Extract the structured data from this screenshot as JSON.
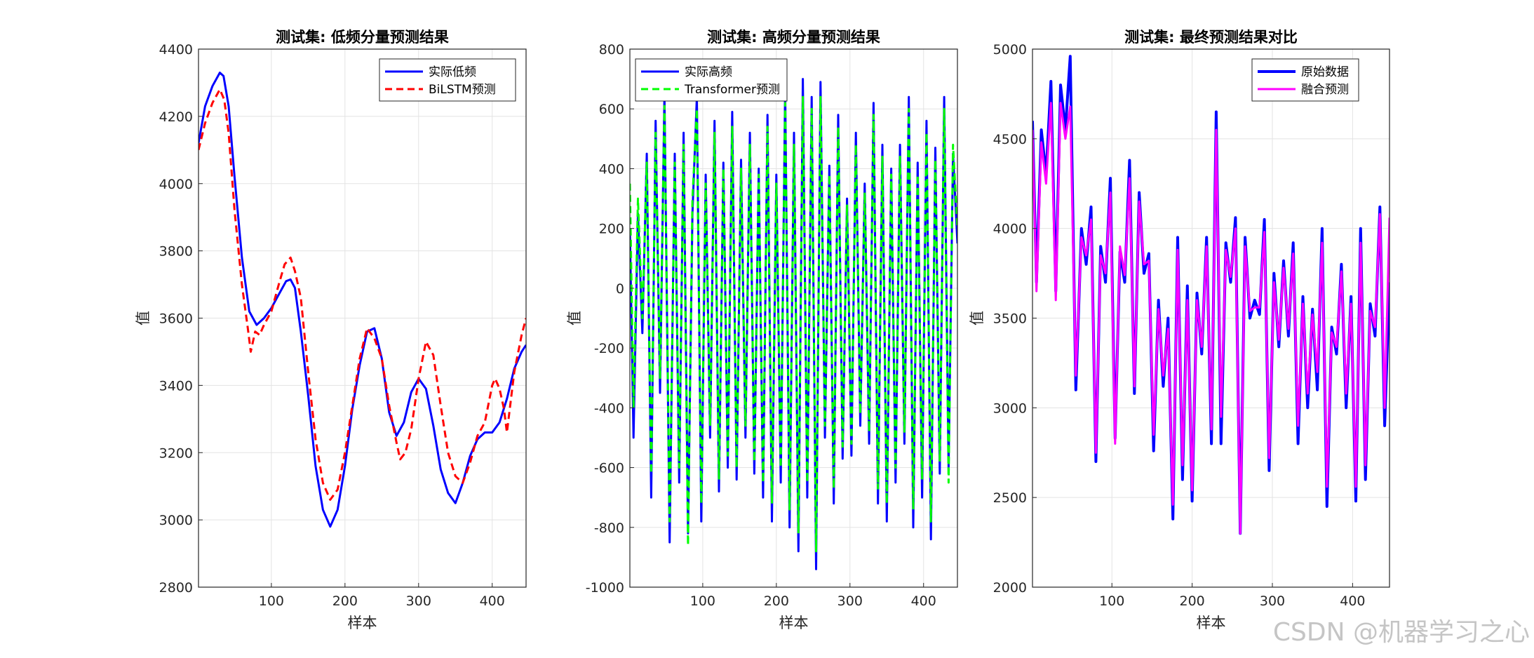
{
  "watermark": "CSDN @机器学习之心",
  "chart_data": [
    {
      "type": "line",
      "title": "测试集: 低频分量预测结果",
      "xlabel": "样本",
      "ylabel": "值",
      "xlim": [
        1,
        446
      ],
      "ylim": [
        2800,
        4400
      ],
      "xticks": [
        100,
        200,
        300,
        400
      ],
      "yticks": [
        2800,
        3000,
        3200,
        3400,
        3600,
        3800,
        4000,
        4200,
        4400
      ],
      "grid": true,
      "legend_position": "top-right",
      "series": [
        {
          "name": "实际低频",
          "color": "#0000ff",
          "dash": "solid",
          "width": 3,
          "x": [
            1,
            10,
            20,
            30,
            35,
            42,
            50,
            60,
            70,
            80,
            90,
            100,
            110,
            120,
            126,
            132,
            140,
            150,
            160,
            170,
            180,
            190,
            200,
            210,
            220,
            230,
            240,
            250,
            260,
            270,
            280,
            290,
            300,
            310,
            320,
            330,
            340,
            350,
            360,
            370,
            380,
            390,
            400,
            410,
            420,
            430,
            440,
            446
          ],
          "y": [
            4120,
            4230,
            4290,
            4330,
            4320,
            4230,
            4020,
            3780,
            3620,
            3580,
            3600,
            3630,
            3670,
            3710,
            3715,
            3690,
            3560,
            3370,
            3160,
            3030,
            2980,
            3030,
            3160,
            3330,
            3460,
            3560,
            3570,
            3480,
            3320,
            3250,
            3290,
            3380,
            3420,
            3390,
            3280,
            3150,
            3080,
            3050,
            3110,
            3190,
            3240,
            3260,
            3260,
            3290,
            3360,
            3450,
            3500,
            3520
          ]
        },
        {
          "name": "BiLSTM预测",
          "color": "#ff0000",
          "dash": "dashed",
          "width": 3,
          "x": [
            1,
            10,
            20,
            30,
            36,
            42,
            50,
            60,
            68,
            72,
            78,
            84,
            90,
            100,
            110,
            118,
            126,
            132,
            140,
            150,
            160,
            170,
            180,
            190,
            200,
            210,
            220,
            230,
            240,
            250,
            260,
            270,
            275,
            282,
            290,
            300,
            310,
            320,
            330,
            340,
            350,
            360,
            370,
            380,
            390,
            400,
            404,
            410,
            416,
            420,
            430,
            440,
            446
          ],
          "y": [
            4100,
            4180,
            4240,
            4280,
            4250,
            4150,
            3920,
            3700,
            3570,
            3500,
            3560,
            3550,
            3580,
            3620,
            3700,
            3760,
            3780,
            3740,
            3660,
            3440,
            3240,
            3110,
            3060,
            3090,
            3200,
            3340,
            3480,
            3570,
            3540,
            3480,
            3340,
            3230,
            3180,
            3200,
            3270,
            3420,
            3530,
            3490,
            3340,
            3200,
            3130,
            3110,
            3170,
            3250,
            3290,
            3400,
            3420,
            3390,
            3330,
            3260,
            3440,
            3550,
            3600
          ]
        }
      ]
    },
    {
      "type": "line",
      "title": "测试集: 高频分量预测结果",
      "xlabel": "样本",
      "ylabel": "值",
      "xlim": [
        1,
        446
      ],
      "ylim": [
        -1000,
        800
      ],
      "xticks": [
        100,
        200,
        300,
        400
      ],
      "yticks": [
        -1000,
        -800,
        -600,
        -400,
        -200,
        0,
        200,
        400,
        600,
        800
      ],
      "grid": true,
      "legend_position": "top-left",
      "series": [
        {
          "name": "实际高频",
          "color": "#0000ff",
          "dash": "solid",
          "width": 3,
          "x": [
            1,
            6,
            12,
            18,
            24,
            30,
            36,
            42,
            48,
            55,
            62,
            68,
            74,
            80,
            86,
            92,
            98,
            104,
            110,
            116,
            122,
            128,
            134,
            140,
            146,
            152,
            158,
            164,
            170,
            176,
            182,
            188,
            194,
            200,
            206,
            212,
            218,
            224,
            230,
            236,
            242,
            248,
            254,
            260,
            266,
            272,
            278,
            284,
            290,
            296,
            302,
            308,
            314,
            320,
            326,
            332,
            338,
            344,
            350,
            356,
            362,
            368,
            374,
            380,
            386,
            392,
            398,
            404,
            410,
            416,
            422,
            428,
            434,
            440,
            446
          ],
          "y": [
            200,
            -500,
            250,
            -150,
            450,
            -700,
            560,
            -350,
            650,
            -850,
            450,
            -650,
            520,
            -820,
            250,
            640,
            -780,
            380,
            -500,
            560,
            -680,
            420,
            -600,
            590,
            -640,
            430,
            -500,
            520,
            -620,
            400,
            -700,
            580,
            -780,
            380,
            -650,
            670,
            -800,
            520,
            -880,
            700,
            -700,
            640,
            -940,
            690,
            -500,
            410,
            -720,
            580,
            -570,
            300,
            -560,
            520,
            -460,
            350,
            -520,
            620,
            -720,
            480,
            -780,
            400,
            -650,
            480,
            -520,
            640,
            -800,
            420,
            -700,
            560,
            -840,
            470,
            -620,
            640,
            -600,
            450,
            150
          ]
        },
        {
          "name": "Transformer预测",
          "color": "#00ff00",
          "dash": "dashed",
          "width": 3,
          "x": [
            1,
            6,
            12,
            18,
            24,
            30,
            36,
            42,
            48,
            55,
            62,
            68,
            74,
            80,
            86,
            92,
            98,
            104,
            110,
            116,
            122,
            128,
            134,
            140,
            146,
            152,
            158,
            164,
            170,
            176,
            182,
            188,
            194,
            200,
            206,
            212,
            218,
            224,
            230,
            236,
            242,
            248,
            254,
            260,
            266,
            272,
            278,
            284,
            290,
            296,
            302,
            308,
            314,
            320,
            326,
            332,
            338,
            344,
            350,
            356,
            362,
            368,
            374,
            380,
            386,
            392,
            398,
            404,
            410,
            416,
            422,
            428,
            434,
            440,
            446
          ],
          "y": [
            350,
            -400,
            300,
            -100,
            420,
            -620,
            520,
            -300,
            610,
            -780,
            420,
            -600,
            480,
            -860,
            300,
            600,
            -720,
            350,
            -460,
            520,
            -640,
            400,
            -560,
            540,
            -600,
            400,
            -460,
            480,
            -580,
            380,
            -650,
            540,
            -720,
            350,
            -600,
            620,
            -740,
            480,
            -820,
            640,
            -650,
            600,
            -880,
            640,
            -460,
            380,
            -670,
            540,
            -530,
            280,
            -520,
            480,
            -420,
            320,
            -480,
            580,
            -670,
            440,
            -720,
            380,
            -600,
            440,
            -480,
            600,
            -740,
            380,
            -640,
            520,
            -780,
            430,
            -580,
            600,
            -650,
            480,
            200
          ]
        }
      ]
    },
    {
      "type": "line",
      "title": "测试集: 最终预测结果对比",
      "xlabel": "样本",
      "ylabel": "值",
      "xlim": [
        1,
        446
      ],
      "ylim": [
        2000,
        5000
      ],
      "xticks": [
        100,
        200,
        300,
        400
      ],
      "yticks": [
        2000,
        2500,
        3000,
        3500,
        4000,
        4500,
        5000
      ],
      "grid": true,
      "legend_position": "top-right",
      "series": [
        {
          "name": "原始数据",
          "color": "#0000ff",
          "dash": "solid",
          "width": 4,
          "x": [
            1,
            6,
            12,
            18,
            24,
            30,
            36,
            42,
            48,
            55,
            62,
            68,
            74,
            80,
            86,
            92,
            98,
            104,
            110,
            116,
            122,
            128,
            134,
            140,
            146,
            152,
            158,
            164,
            170,
            176,
            182,
            188,
            194,
            200,
            206,
            212,
            218,
            224,
            230,
            236,
            242,
            248,
            254,
            260,
            266,
            272,
            278,
            284,
            290,
            296,
            302,
            308,
            314,
            320,
            326,
            332,
            338,
            344,
            350,
            356,
            362,
            368,
            374,
            380,
            386,
            392,
            398,
            404,
            410,
            416,
            422,
            428,
            434,
            440,
            446
          ],
          "y": [
            4600,
            3700,
            4550,
            4300,
            4820,
            3650,
            4800,
            4550,
            4960,
            3100,
            4000,
            3800,
            4120,
            2700,
            3900,
            3700,
            4280,
            2830,
            3870,
            3700,
            4380,
            3080,
            4200,
            3750,
            3860,
            2760,
            3600,
            3120,
            3500,
            2380,
            3950,
            2600,
            3680,
            2480,
            3640,
            3300,
            3950,
            2800,
            4650,
            2800,
            3920,
            3700,
            4060,
            2300,
            3950,
            3500,
            3600,
            3520,
            4050,
            2650,
            3750,
            3340,
            3820,
            3400,
            3920,
            2800,
            3620,
            3000,
            3550,
            3100,
            4000,
            2450,
            3450,
            3300,
            3800,
            3000,
            3620,
            2480,
            4000,
            2600,
            3580,
            3400,
            4120,
            2900,
            3700
          ]
        },
        {
          "name": "融合预测",
          "color": "#ff00ff",
          "dash": "solid",
          "width": 3,
          "x": [
            1,
            6,
            12,
            18,
            24,
            30,
            36,
            42,
            48,
            55,
            62,
            68,
            74,
            80,
            86,
            92,
            98,
            104,
            110,
            116,
            122,
            128,
            134,
            140,
            146,
            152,
            158,
            164,
            170,
            176,
            182,
            188,
            194,
            200,
            206,
            212,
            218,
            224,
            230,
            236,
            242,
            248,
            254,
            260,
            266,
            272,
            278,
            284,
            290,
            296,
            302,
            308,
            314,
            320,
            326,
            332,
            338,
            344,
            350,
            356,
            362,
            368,
            374,
            380,
            386,
            392,
            398,
            404,
            410,
            416,
            422,
            428,
            434,
            440,
            446
          ],
          "y": [
            4550,
            3650,
            4480,
            4250,
            4700,
            3600,
            4700,
            4500,
            4680,
            3180,
            3950,
            3850,
            4050,
            2750,
            3850,
            3750,
            4200,
            2800,
            3900,
            3740,
            4280,
            3120,
            4150,
            3800,
            3820,
            2850,
            3550,
            3180,
            3440,
            2460,
            3880,
            2680,
            3600,
            2540,
            3600,
            3340,
            3900,
            2880,
            4550,
            2950,
            3880,
            3730,
            4000,
            2300,
            3900,
            3540,
            3560,
            3560,
            3980,
            2720,
            3700,
            3380,
            3780,
            3440,
            3860,
            2900,
            3580,
            3080,
            3520,
            3200,
            3920,
            2560,
            3420,
            3340,
            3760,
            3080,
            3580,
            2560,
            3920,
            2680,
            3540,
            3450,
            4080,
            3000,
            4060
          ]
        }
      ]
    }
  ]
}
